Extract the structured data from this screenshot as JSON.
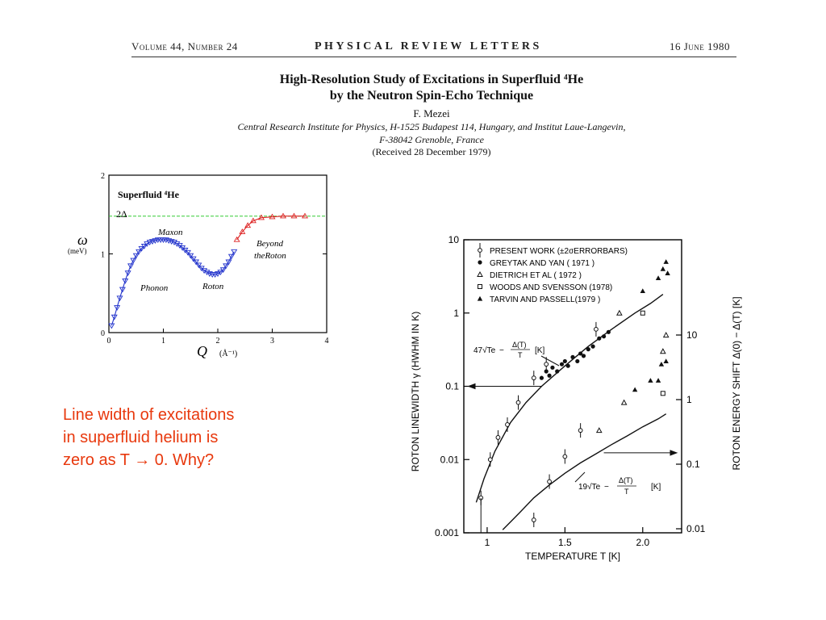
{
  "header": {
    "volume": "Volume 44, Number 24",
    "journal": "PHYSICAL REVIEW LETTERS",
    "date": "16 June 1980"
  },
  "paper": {
    "title_line1": "High-Resolution Study of Excitations in Superfluid ⁴He",
    "title_line2": "by the Neutron Spin-Echo Technique",
    "author": "F. Mezei",
    "affiliation_line1": "Central Research Institute for Physics, H-1525 Budapest 114, Hungary, and Institut Laue-Langevin,",
    "affiliation_line2": "F-38042 Grenoble, France",
    "received": "(Received 28 December 1979)"
  },
  "caption": {
    "line1": "Line width of excitations",
    "line2": "in superfluid helium is",
    "line3": "zero as T → 0. Why?"
  },
  "colors": {
    "caption": "#e8380d",
    "phonon_branch": "#2233cc",
    "roton_branch": "#dd2222",
    "gap_line": "#33cc33"
  },
  "chart_data": [
    {
      "type": "scatter",
      "title": "Superfluid ⁴He",
      "xlabel": "Q",
      "xunit": "(Å⁻¹)",
      "ylabel": "ω",
      "yunit": "(meV)",
      "xlim": [
        0,
        4
      ],
      "ylim": [
        0,
        2
      ],
      "xticks": [
        "0",
        "1",
        "2",
        "3",
        "4"
      ],
      "yticks": [
        "0",
        "1",
        "2"
      ],
      "gap_label": "2Δ",
      "gap_value": 1.48,
      "annotations": [
        "Maxon",
        "Phonon",
        "Roton",
        "Beyond",
        "theRoton"
      ],
      "series": [
        {
          "color": "#2233cc",
          "x": [
            0.05,
            0.1,
            0.15,
            0.2,
            0.25,
            0.3,
            0.35,
            0.4,
            0.45,
            0.5,
            0.55,
            0.6,
            0.65,
            0.7,
            0.75,
            0.8,
            0.85,
            0.9,
            0.95,
            1.0,
            1.05,
            1.1,
            1.15,
            1.2,
            1.25,
            1.3,
            1.35,
            1.4,
            1.45,
            1.5,
            1.55,
            1.6,
            1.65,
            1.7,
            1.75,
            1.8,
            1.85,
            1.9,
            1.95,
            2.0,
            2.05,
            2.1,
            2.15,
            2.2,
            2.25,
            2.3
          ],
          "y": [
            0.09,
            0.2,
            0.32,
            0.44,
            0.55,
            0.66,
            0.76,
            0.85,
            0.92,
            0.98,
            1.03,
            1.07,
            1.1,
            1.13,
            1.15,
            1.16,
            1.17,
            1.18,
            1.18,
            1.18,
            1.18,
            1.17,
            1.16,
            1.15,
            1.13,
            1.11,
            1.08,
            1.05,
            1.02,
            0.98,
            0.94,
            0.9,
            0.86,
            0.82,
            0.79,
            0.77,
            0.75,
            0.74,
            0.74,
            0.75,
            0.77,
            0.8,
            0.85,
            0.9,
            0.97,
            1.03
          ]
        },
        {
          "color": "#dd2222",
          "x": [
            2.35,
            2.45,
            2.55,
            2.65,
            2.8,
            3.0,
            3.2,
            3.4,
            3.6
          ],
          "y": [
            1.18,
            1.28,
            1.36,
            1.42,
            1.46,
            1.47,
            1.48,
            1.48,
            1.48
          ]
        }
      ]
    },
    {
      "type": "scatter",
      "xlabel": "TEMPERATURE  T  [K]",
      "ylabel": "ROTON  LINEWIDTH γ  (HWHM  IN  K)",
      "ylabel_right": "ROTON  ENERGY  SHIFT  Δ(0) − Δ(T)  [K]",
      "yscale": "log",
      "xlim": [
        0.85,
        2.25
      ],
      "ylim": [
        0.001,
        10
      ],
      "xticks": [
        "1",
        "1.5",
        "2.0"
      ],
      "yticks": [
        "0.001",
        "0.01",
        "0.1",
        "1",
        "10"
      ],
      "yticks_right": [
        "0.01",
        "0.1",
        "1",
        "10"
      ],
      "legend": [
        "PRESENT  WORK  (±2σERRORBARS)",
        "GREYTAK  AND  YAN   ( 1971 )",
        "DIETRICH  ET  AL  ( 1972 )",
        "WOODS  AND  SVENSSON  (1978)",
        "TARVIN  AND  PASSELL(1979 )"
      ],
      "legend_position": "top",
      "fit1_label": "47√Te",
      "fit2_label": "19√Te",
      "fit_frac_num": "Δ(T)",
      "fit_frac_den": "T",
      "fit_unit": "[K]",
      "series": [
        {
          "name": "PRESENT  WORK  (±2σERRORBARS)",
          "marker": "open-circle-errorbar",
          "x": [
            0.96,
            1.02,
            1.07,
            1.13,
            1.2,
            1.3,
            1.38,
            1.7,
            1.3,
            1.4,
            1.5,
            1.6
          ],
          "y": [
            0.003,
            0.01,
            0.02,
            0.03,
            0.06,
            0.13,
            0.2,
            0.6,
            0.0015,
            0.005,
            0.011,
            0.025
          ]
        },
        {
          "name": "GREYTAK  AND  YAN   ( 1971 )",
          "marker": "filled-circle",
          "x": [
            1.35,
            1.38,
            1.4,
            1.42,
            1.45,
            1.48,
            1.5,
            1.52,
            1.55,
            1.58,
            1.6,
            1.62,
            1.65,
            1.68,
            1.72,
            1.75,
            1.78
          ],
          "y": [
            0.13,
            0.16,
            0.14,
            0.18,
            0.16,
            0.2,
            0.22,
            0.19,
            0.25,
            0.22,
            0.28,
            0.26,
            0.32,
            0.35,
            0.45,
            0.48,
            0.55
          ]
        },
        {
          "name": "DIETRICH  ET  AL  ( 1972 )",
          "marker": "open-triangle",
          "x": [
            1.85,
            1.72,
            1.88,
            2.13,
            2.15
          ],
          "y": [
            1.0,
            0.025,
            0.06,
            0.3,
            0.5
          ]
        },
        {
          "name": "WOODS  AND  SVENSSON  (1978)",
          "marker": "open-square",
          "x": [
            2.0,
            2.13
          ],
          "y": [
            1.0,
            0.08
          ]
        },
        {
          "name": "TARVIN  AND  PASSELL(1979 )",
          "marker": "filled-triangle",
          "x": [
            2.0,
            2.1,
            2.13,
            2.15,
            2.16,
            1.95,
            2.05,
            2.1,
            2.12,
            2.15
          ],
          "y": [
            2.0,
            3.0,
            4.0,
            5.0,
            3.5,
            0.09,
            0.12,
            0.12,
            0.2,
            0.22
          ]
        }
      ]
    }
  ]
}
